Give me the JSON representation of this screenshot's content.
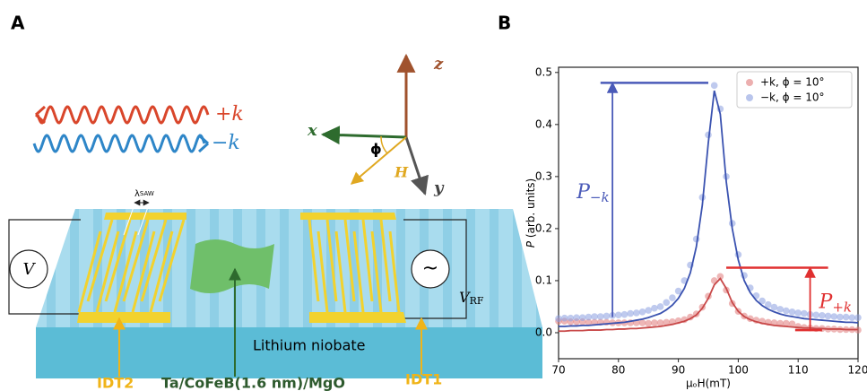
{
  "diagram": {
    "panel": "A",
    "waves": [
      {
        "label": "+k",
        "color": "#d9462b"
      },
      {
        "label": "−k",
        "color": "#2e86c8"
      }
    ],
    "axes": {
      "z": "z",
      "x": "x",
      "y": "y",
      "phi": "ϕ",
      "H": "H"
    },
    "lambda": {
      "symbol": "λ",
      "sub": "SAW"
    },
    "voltmeter": "V",
    "source": "~",
    "source_label": {
      "symbol": "V",
      "sub": "RF"
    },
    "substrate": "Lithium niobate",
    "idt_left": "IDT2",
    "film": "Ta/CoFeB(1.6 nm)/MgO",
    "idt_right": "IDT1"
  },
  "chart_data": {
    "type": "scatter",
    "panel": "B",
    "xlabel": "μₒH(mT)",
    "ylabel": {
      "symbol": "P",
      "text": " (arb. units)"
    },
    "xlim": [
      70,
      120
    ],
    "ylim": [
      -0.05,
      0.51
    ],
    "xticks": [
      70,
      80,
      90,
      100,
      110,
      120
    ],
    "yticks": [
      {
        "value": 0,
        "label": "0.0"
      },
      0.1,
      0.2,
      0.3,
      0.4,
      0.5
    ],
    "legend": "upper right",
    "x": [
      70,
      71,
      72,
      73,
      74,
      75,
      76,
      77,
      78,
      79,
      80,
      81,
      82,
      83,
      84,
      85,
      86,
      87,
      88,
      89,
      90,
      91,
      92,
      93,
      94,
      95,
      96,
      97,
      98,
      99,
      100,
      101,
      102,
      103,
      104,
      105,
      106,
      107,
      108,
      109,
      110,
      111,
      112,
      113,
      114,
      115,
      116,
      117,
      118,
      119,
      120
    ],
    "series": [
      {
        "name": "+k, ϕ = 10°",
        "color": "#e07a7a",
        "values": [
          0.022,
          0.022,
          0.021,
          0.021,
          0.021,
          0.02,
          0.02,
          0.02,
          0.02,
          0.019,
          0.019,
          0.019,
          0.019,
          0.019,
          0.019,
          0.018,
          0.019,
          0.019,
          0.02,
          0.021,
          0.023,
          0.025,
          0.03,
          0.036,
          0.049,
          0.07,
          0.1,
          0.108,
          0.082,
          0.056,
          0.041,
          0.032,
          0.027,
          0.024,
          0.022,
          0.02,
          0.019,
          0.018,
          0.018,
          0.017,
          0.012,
          0.01,
          0.009,
          0.008,
          0.008,
          0.007,
          0.007,
          0.006,
          0.006,
          0.006,
          0.005
        ]
      },
      {
        "name": "−k, ϕ = 10°",
        "color": "#8b9ee0",
        "values": [
          0.027,
          0.028,
          0.028,
          0.029,
          0.029,
          0.03,
          0.031,
          0.031,
          0.032,
          0.033,
          0.034,
          0.035,
          0.037,
          0.038,
          0.04,
          0.043,
          0.047,
          0.05,
          0.058,
          0.067,
          0.08,
          0.1,
          0.13,
          0.18,
          0.26,
          0.38,
          0.475,
          0.43,
          0.3,
          0.21,
          0.15,
          0.11,
          0.086,
          0.071,
          0.061,
          0.054,
          0.049,
          0.045,
          0.042,
          0.04,
          0.038,
          0.037,
          0.035,
          0.034,
          0.033,
          0.032,
          0.031,
          0.03,
          0.03,
          0.029,
          0.029
        ]
      },
      {
        "style": "line",
        "color": "#c84848",
        "values": [
          0.003,
          0.003,
          0.004,
          0.004,
          0.004,
          0.005,
          0.005,
          0.005,
          0.006,
          0.006,
          0.007,
          0.007,
          0.008,
          0.008,
          0.009,
          0.01,
          0.011,
          0.012,
          0.014,
          0.016,
          0.019,
          0.022,
          0.027,
          0.034,
          0.047,
          0.066,
          0.092,
          0.104,
          0.085,
          0.058,
          0.041,
          0.031,
          0.025,
          0.021,
          0.018,
          0.016,
          0.014,
          0.013,
          0.012,
          0.011,
          0.01,
          0.009,
          0.009,
          0.008,
          0.008,
          0.007,
          0.007,
          0.007,
          0.006,
          0.006,
          0.006
        ]
      },
      {
        "style": "line",
        "color": "#3a52b0",
        "values": [
          0.012,
          0.012,
          0.013,
          0.013,
          0.014,
          0.014,
          0.015,
          0.016,
          0.017,
          0.018,
          0.019,
          0.02,
          0.022,
          0.024,
          0.026,
          0.029,
          0.033,
          0.037,
          0.044,
          0.053,
          0.066,
          0.085,
          0.115,
          0.165,
          0.245,
          0.365,
          0.465,
          0.42,
          0.29,
          0.2,
          0.14,
          0.1,
          0.077,
          0.062,
          0.052,
          0.045,
          0.04,
          0.036,
          0.033,
          0.031,
          0.029,
          0.027,
          0.026,
          0.025,
          0.024,
          0.023,
          0.022,
          0.021,
          0.02,
          0.02,
          0.019
        ]
      }
    ],
    "annotations": [
      {
        "label": "P",
        "sub": "−k",
        "color": "#4a5ab8",
        "x": 79,
        "y": [
          0.03,
          0.48
        ],
        "top_span": [
          77,
          95
        ]
      },
      {
        "label": "P",
        "sub": "+k",
        "color": "#e03030",
        "x": 112,
        "y": [
          0.005,
          0.125
        ],
        "top_span": [
          98,
          115
        ],
        "bottom_span": [
          109.5,
          114
        ]
      }
    ]
  }
}
